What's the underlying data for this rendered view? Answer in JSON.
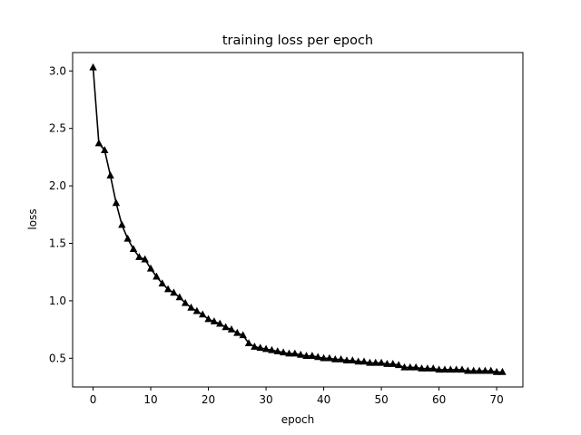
{
  "chart_data": {
    "type": "line",
    "title": "training loss per epoch",
    "xlabel": "epoch",
    "ylabel": "loss",
    "xlim": [
      -3.55,
      74.55
    ],
    "ylim": [
      0.25,
      3.16
    ],
    "xticks": [
      0,
      10,
      20,
      30,
      40,
      50,
      60,
      70
    ],
    "yticks": [
      0.5,
      1.0,
      1.5,
      2.0,
      2.5,
      3.0
    ],
    "xtick_labels": [
      "0",
      "10",
      "20",
      "30",
      "40",
      "50",
      "60",
      "70"
    ],
    "ytick_labels": [
      "0.5",
      "1.0",
      "1.5",
      "2.0",
      "2.5",
      "3.0"
    ],
    "grid": false,
    "legend": "none",
    "series": [
      {
        "color": "#000000",
        "marker": "triangle",
        "x": [
          0,
          1,
          2,
          3,
          4,
          5,
          6,
          7,
          8,
          9,
          10,
          11,
          12,
          13,
          14,
          15,
          16,
          17,
          18,
          19,
          20,
          21,
          22,
          23,
          24,
          25,
          26,
          27,
          28,
          29,
          30,
          31,
          32,
          33,
          34,
          35,
          36,
          37,
          38,
          39,
          40,
          41,
          42,
          43,
          44,
          45,
          46,
          47,
          48,
          49,
          50,
          51,
          52,
          53,
          54,
          55,
          56,
          57,
          58,
          59,
          60,
          61,
          62,
          63,
          64,
          65,
          66,
          67,
          68,
          69,
          70,
          71
        ],
        "values": [
          3.03,
          2.37,
          2.31,
          2.09,
          1.85,
          1.66,
          1.54,
          1.45,
          1.38,
          1.36,
          1.28,
          1.21,
          1.15,
          1.1,
          1.07,
          1.03,
          0.98,
          0.94,
          0.91,
          0.88,
          0.84,
          0.82,
          0.8,
          0.77,
          0.75,
          0.72,
          0.7,
          0.63,
          0.6,
          0.59,
          0.58,
          0.57,
          0.56,
          0.55,
          0.54,
          0.54,
          0.53,
          0.52,
          0.52,
          0.51,
          0.5,
          0.5,
          0.49,
          0.49,
          0.48,
          0.48,
          0.47,
          0.47,
          0.46,
          0.46,
          0.46,
          0.45,
          0.45,
          0.44,
          0.42,
          0.42,
          0.42,
          0.41,
          0.41,
          0.41,
          0.4,
          0.4,
          0.4,
          0.4,
          0.4,
          0.39,
          0.39,
          0.39,
          0.39,
          0.39,
          0.38,
          0.38
        ]
      }
    ]
  }
}
